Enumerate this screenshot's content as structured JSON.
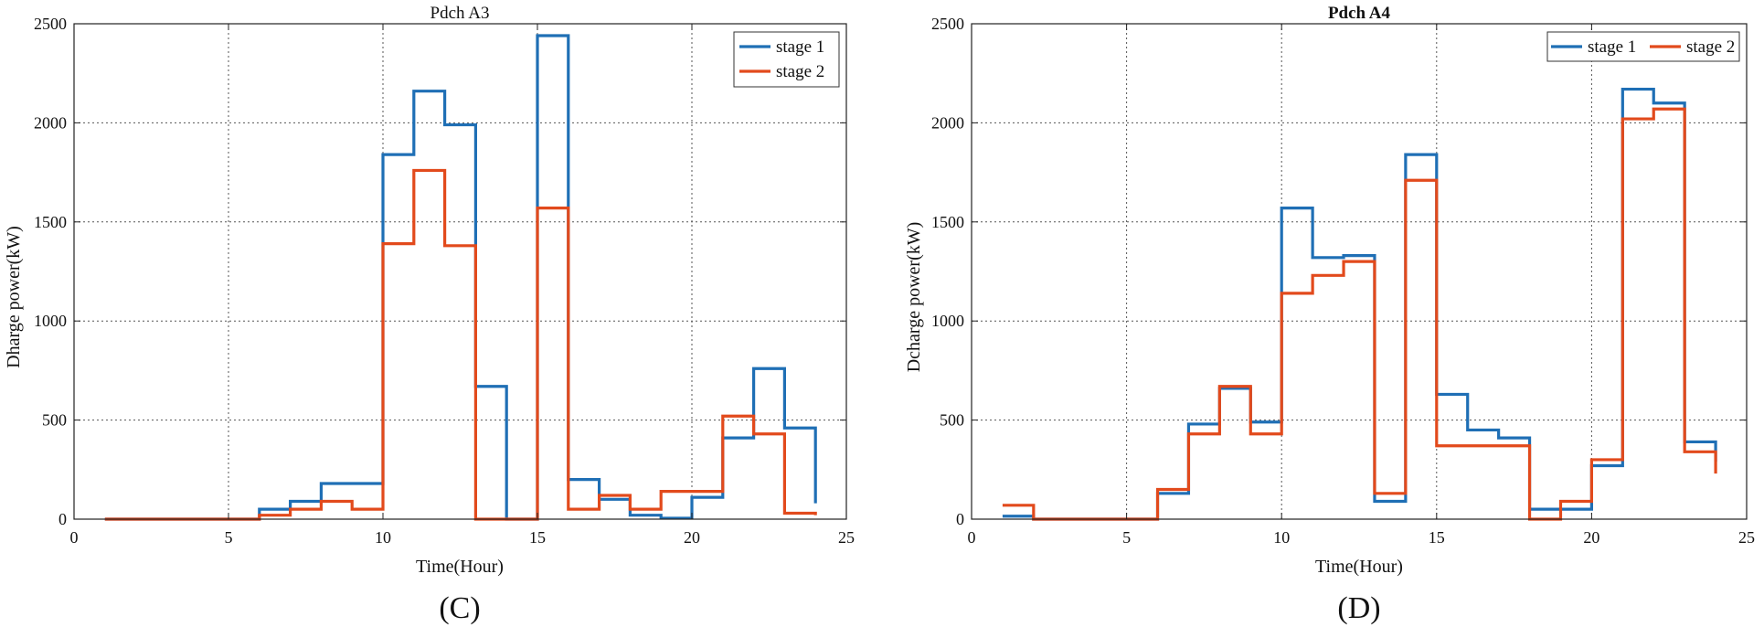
{
  "chart_data": [
    {
      "type": "line",
      "style": "step",
      "title": "Pdch A3",
      "xlabel": "Time(Hour)",
      "ylabel": "Dharge power(kW)",
      "panel_label": "(C)",
      "xlim": [
        0,
        25
      ],
      "ylim": [
        0,
        2500
      ],
      "xticks": [
        0,
        5,
        10,
        15,
        20,
        25
      ],
      "yticks": [
        0,
        500,
        1000,
        1500,
        2000,
        2500
      ],
      "grid": true,
      "legend_position": "top-right",
      "legend_layout": "vertical",
      "series": [
        {
          "name": "stage 1",
          "color": "#1f6fb5",
          "x": [
            1,
            2,
            3,
            4,
            5,
            6,
            7,
            8,
            9,
            10,
            11,
            12,
            13,
            14,
            15,
            16,
            17,
            18,
            19,
            20,
            21,
            22,
            23,
            24
          ],
          "values": [
            0,
            0,
            0,
            0,
            0,
            50,
            90,
            180,
            180,
            1840,
            2160,
            1990,
            670,
            0,
            2440,
            200,
            100,
            20,
            5,
            110,
            410,
            760,
            460,
            80
          ]
        },
        {
          "name": "stage 2",
          "color": "#e24a1c",
          "x": [
            1,
            2,
            3,
            4,
            5,
            6,
            7,
            8,
            9,
            10,
            11,
            12,
            13,
            14,
            15,
            16,
            17,
            18,
            19,
            20,
            21,
            22,
            23,
            24
          ],
          "values": [
            0,
            0,
            0,
            0,
            0,
            20,
            50,
            90,
            50,
            1390,
            1760,
            1380,
            0,
            0,
            1570,
            50,
            120,
            50,
            140,
            140,
            520,
            430,
            30,
            20
          ]
        }
      ]
    },
    {
      "type": "line",
      "style": "step",
      "title": "Pdch A4",
      "xlabel": "Time(Hour)",
      "ylabel": "Dcharge power(kW)",
      "panel_label": "(D)",
      "xlim": [
        0,
        25
      ],
      "ylim": [
        0,
        2500
      ],
      "xticks": [
        0,
        5,
        10,
        15,
        20,
        25
      ],
      "yticks": [
        0,
        500,
        1000,
        1500,
        2000,
        2500
      ],
      "grid": true,
      "legend_position": "top-right",
      "legend_layout": "horizontal",
      "series": [
        {
          "name": "stage 1",
          "color": "#1f6fb5",
          "x": [
            1,
            2,
            3,
            4,
            5,
            6,
            7,
            8,
            9,
            10,
            11,
            12,
            13,
            14,
            15,
            16,
            17,
            18,
            19,
            20,
            21,
            22,
            23,
            24
          ],
          "values": [
            15,
            0,
            0,
            0,
            0,
            130,
            480,
            660,
            490,
            1570,
            1320,
            1330,
            90,
            1840,
            630,
            450,
            410,
            50,
            50,
            270,
            2170,
            2100,
            390,
            290
          ]
        },
        {
          "name": "stage 2",
          "color": "#e24a1c",
          "x": [
            1,
            2,
            3,
            4,
            5,
            6,
            7,
            8,
            9,
            10,
            11,
            12,
            13,
            14,
            15,
            16,
            17,
            18,
            19,
            20,
            21,
            22,
            23,
            24
          ],
          "values": [
            70,
            0,
            0,
            0,
            0,
            150,
            430,
            670,
            430,
            1140,
            1230,
            1300,
            130,
            1710,
            370,
            370,
            370,
            0,
            90,
            300,
            2020,
            2070,
            340,
            230
          ]
        }
      ]
    }
  ]
}
